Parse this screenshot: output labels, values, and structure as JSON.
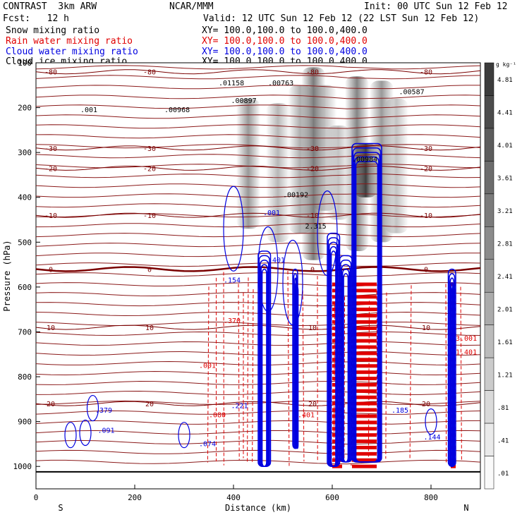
{
  "header": {
    "left1": "CONTRAST  3km ARW",
    "center1": "NCAR/MMM",
    "right1": "Init: 00 UTC Sun 12 Feb 12",
    "left2": "Fcst:   12 h",
    "right2": "Valid: 12 UTC Sun 12 Feb 12 (22 LST Sun 12 Feb 12)"
  },
  "legend": [
    {
      "name": "Snow mixing ratio",
      "xy": "XY= 100.0,100.0 to 100.0,400.0",
      "color": "#000000"
    },
    {
      "name": "Rain water mixing ratio",
      "xy": "XY= 100.0,100.0 to 100.0,400.0",
      "color": "#ff0000"
    },
    {
      "name": "Cloud water mixing ratio",
      "xy": "XY= 100.0,100.0 to 100.0,400.0",
      "color": "#0000ff"
    },
    {
      "name": "Cloud ice mixing ratio",
      "xy": "XY= 100.0,100.0 to 100.0,400.0",
      "color": "#000000"
    }
  ],
  "chart_data": {
    "type": "heatmap",
    "xlabel": "Distance (km)",
    "ylabel": "Pressure (hPa)",
    "xlim": [
      0,
      900
    ],
    "ylim": [
      1050,
      100
    ],
    "x_ticks": [
      0,
      200,
      400,
      600,
      800
    ],
    "y_ticks": [
      100,
      200,
      300,
      400,
      500,
      600,
      700,
      800,
      900,
      1000
    ],
    "x_end_labels": {
      "left": "S",
      "right": "N"
    },
    "colorbar": {
      "unit": "g kg⁻¹",
      "ticks": [
        "4.81",
        "4.41",
        "4.01",
        "3.61",
        "3.21",
        "2.81",
        "2.41",
        "2.01",
        "1.61",
        "1.21",
        ".81",
        ".41",
        ".01"
      ]
    },
    "snow_columns": [
      {
        "x": 430,
        "p_top": 180,
        "p_bot": 470,
        "intensity": 0.5
      },
      {
        "x": 490,
        "p_top": 190,
        "p_bot": 500,
        "intensity": 0.35
      },
      {
        "x": 535,
        "p_top": 150,
        "p_bot": 480,
        "intensity": 0.4
      },
      {
        "x": 562,
        "p_top": 110,
        "p_bot": 540,
        "intensity": 0.65
      },
      {
        "x": 585,
        "p_top": 150,
        "p_bot": 430,
        "intensity": 0.3
      },
      {
        "x": 612,
        "p_top": 240,
        "p_bot": 450,
        "intensity": 0.3
      },
      {
        "x": 650,
        "p_top": 130,
        "p_bot": 520,
        "intensity": 0.6
      },
      {
        "x": 668,
        "p_top": 280,
        "p_bot": 400,
        "intensity": 0.9
      },
      {
        "x": 700,
        "p_top": 140,
        "p_bot": 500,
        "intensity": 0.5
      },
      {
        "x": 730,
        "p_top": 180,
        "p_bot": 480,
        "intensity": 0.3
      }
    ],
    "temperature_isotherms": [
      {
        "label": "-80",
        "p": 120
      },
      {
        "label": "-30",
        "p": 290
      },
      {
        "label": "-20",
        "p": 335
      },
      {
        "label": "-10",
        "p": 440
      },
      {
        "label": "0",
        "p": 560
      },
      {
        "label": "10",
        "p": 690
      },
      {
        "label": "20",
        "p": 860
      }
    ],
    "cloud_water_labels": [
      ".001",
      ".401",
      ".154",
      ".221",
      ".074",
      ".379",
      ".185",
      ".144",
      ".091"
    ],
    "rain_labels": [
      ".001",
      ".370",
      ".080",
      ".401",
      "3.001",
      "1.401"
    ],
    "snow_labels": [
      ".001",
      ".00968",
      ".01158",
      ".00897",
      ".00763",
      ".00192",
      ".00984",
      ".00587",
      "2.315"
    ]
  }
}
